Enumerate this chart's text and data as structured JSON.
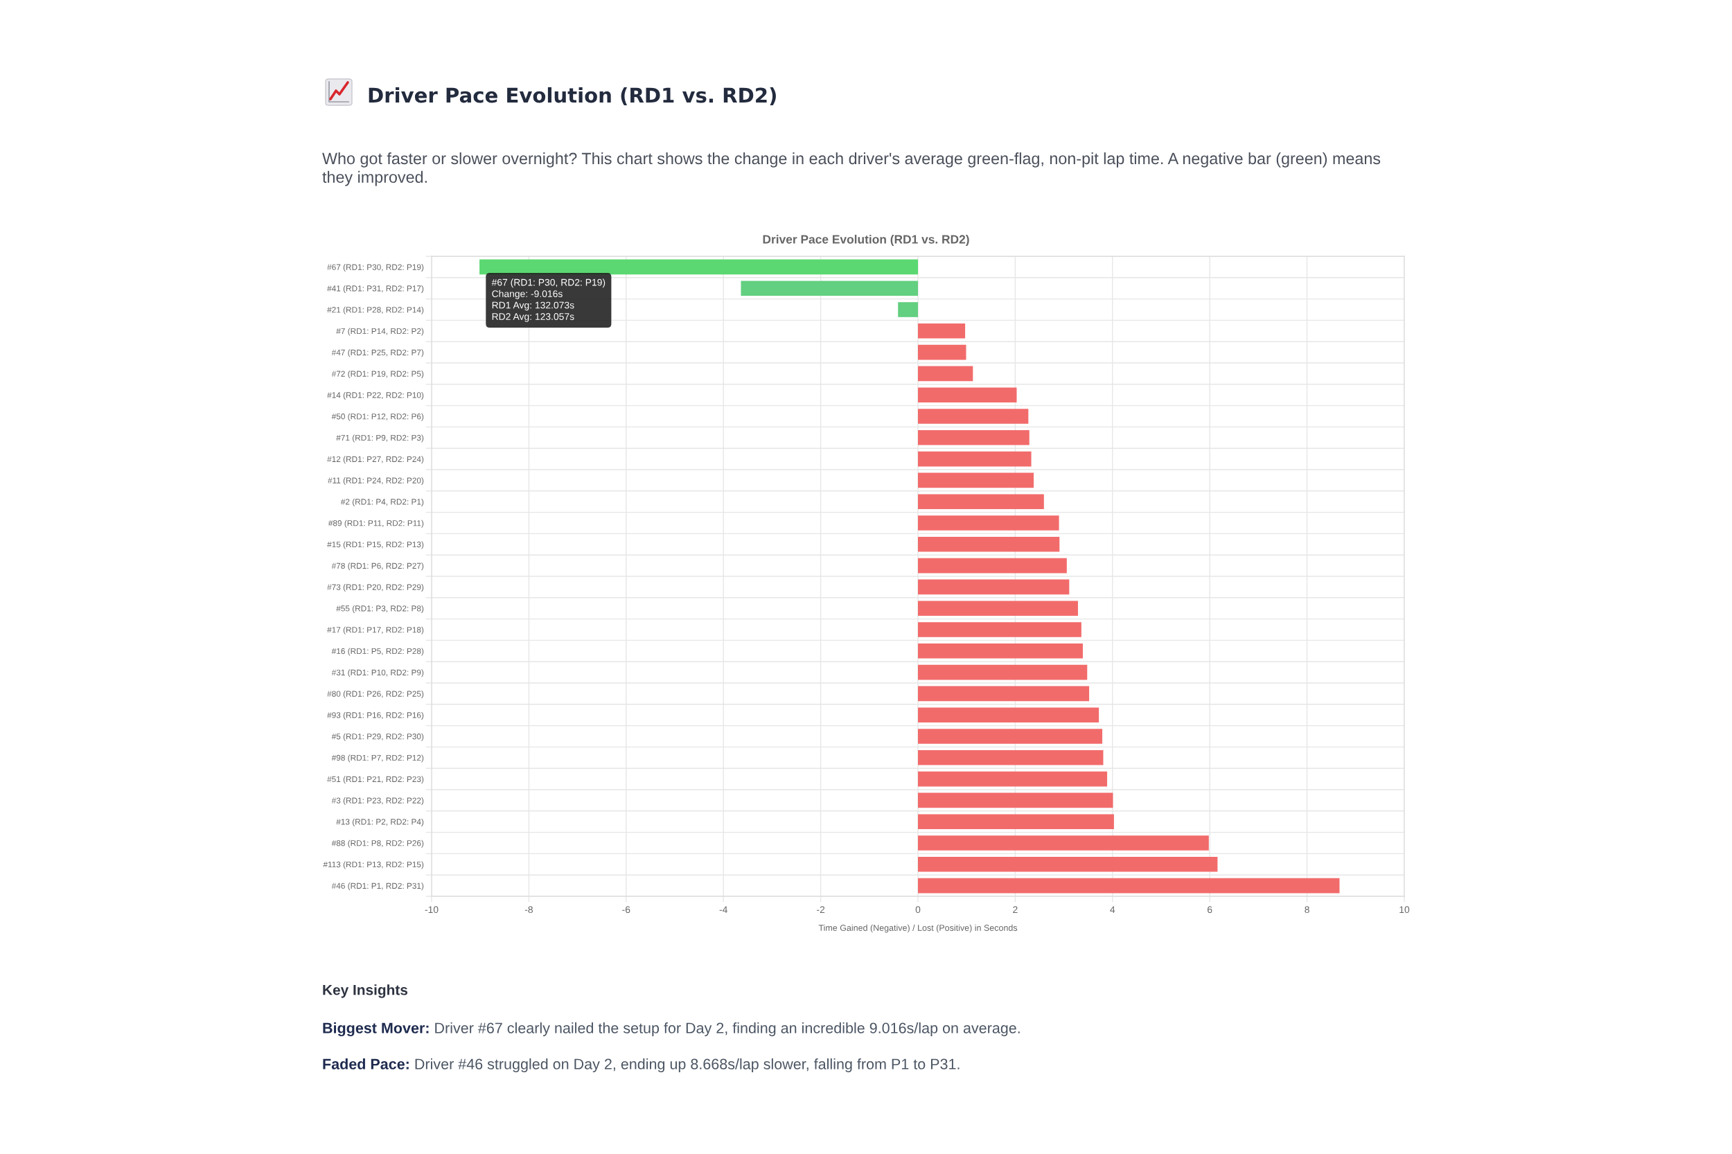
{
  "chart_data": {
    "type": "bar",
    "orientation": "horizontal",
    "title": "Driver Pace Evolution (RD1 vs. RD2)",
    "subtitle": "Who got faster or slower overnight? This chart shows the change in each driver's average green-flag, non-pit lap time. A negative bar (green) means they improved.",
    "xlabel": "Time Gained (Negative) / Lost (Positive) in Seconds",
    "categories": [
      "#67 (RD1: P30, RD2: P19)",
      "#41 (RD1: P31, RD2: P17)",
      "#21 (RD1: P28, RD2: P14)",
      "#7 (RD1: P14, RD2: P2)",
      "#47 (RD1: P25, RD2: P7)",
      "#72 (RD1: P19, RD2: P5)",
      "#14 (RD1: P22, RD2: P10)",
      "#50 (RD1: P12, RD2: P6)",
      "#71 (RD1: P9, RD2: P3)",
      "#12 (RD1: P27, RD2: P24)",
      "#11 (RD1: P24, RD2: P20)",
      "#2 (RD1: P4, RD2: P1)",
      "#89 (RD1: P11, RD2: P11)",
      "#15 (RD1: P15, RD2: P13)",
      "#78 (RD1: P6, RD2: P27)",
      "#73 (RD1: P20, RD2: P29)",
      "#55 (RD1: P3, RD2: P8)",
      "#17 (RD1: P17, RD2: P18)",
      "#16 (RD1: P5, RD2: P28)",
      "#31 (RD1: P10, RD2: P9)",
      "#80 (RD1: P26, RD2: P25)",
      "#93 (RD1: P16, RD2: P16)",
      "#5 (RD1: P29, RD2: P30)",
      "#98 (RD1: P7, RD2: P12)",
      "#51 (RD1: P21, RD2: P23)",
      "#3 (RD1: P23, RD2: P22)",
      "#13 (RD1: P2, RD2: P4)",
      "#88 (RD1: P8, RD2: P26)",
      "#113 (RD1: P13, RD2: P15)",
      "#46 (RD1: P1, RD2: P31)"
    ],
    "values": [
      -9.016,
      -3.64,
      -0.41,
      0.97,
      0.99,
      1.13,
      2.03,
      2.27,
      2.29,
      2.33,
      2.38,
      2.59,
      2.9,
      2.91,
      3.06,
      3.11,
      3.29,
      3.36,
      3.39,
      3.48,
      3.52,
      3.72,
      3.79,
      3.81,
      3.89,
      4.01,
      4.03,
      5.98,
      6.16,
      8.668
    ],
    "colors": [
      "#5bd872",
      "#63cf80",
      "#63cf80",
      "#f26b6b",
      "#f26b6b",
      "#f26b6b",
      "#f26b6b",
      "#f26b6b",
      "#f26b6b",
      "#f26b6b",
      "#f26b6b",
      "#f26b6b",
      "#f26b6b",
      "#f26b6b",
      "#f26b6b",
      "#f26b6b",
      "#f26b6b",
      "#f26b6b",
      "#f26b6b",
      "#f26b6b",
      "#f26b6b",
      "#f26b6b",
      "#f26b6b",
      "#f26b6b",
      "#f26b6b",
      "#f26b6b",
      "#f26b6b",
      "#f26b6b",
      "#f26b6b",
      "#f26b6b"
    ],
    "xlim": [
      -10,
      10
    ],
    "xticks": [
      -10,
      -8,
      -6,
      -4,
      -2,
      0,
      2,
      4,
      6,
      8,
      10
    ],
    "grid": true,
    "annotations": [
      "Driver Pace Evolution (RD1 vs. RD2)",
      {
        "text": "#67 (RD1: P30, RD2: P19)\nChange: -9.016s\nRD1 Avg: 132.073s\nRD2 Avg: 123.057s",
        "x": -9.016,
        "y": "#67 (RD1: P30, RD2: P19)"
      },
      "Key Insights",
      "Biggest Mover: Driver #67 clearly nailed the setup for Day 2, finding an incredible 9.016s/lap on average.",
      "Faded Pace: Driver #46 struggled on Day 2, ending up 8.668s/lap slower, falling from P1 to P31."
    ]
  }
}
